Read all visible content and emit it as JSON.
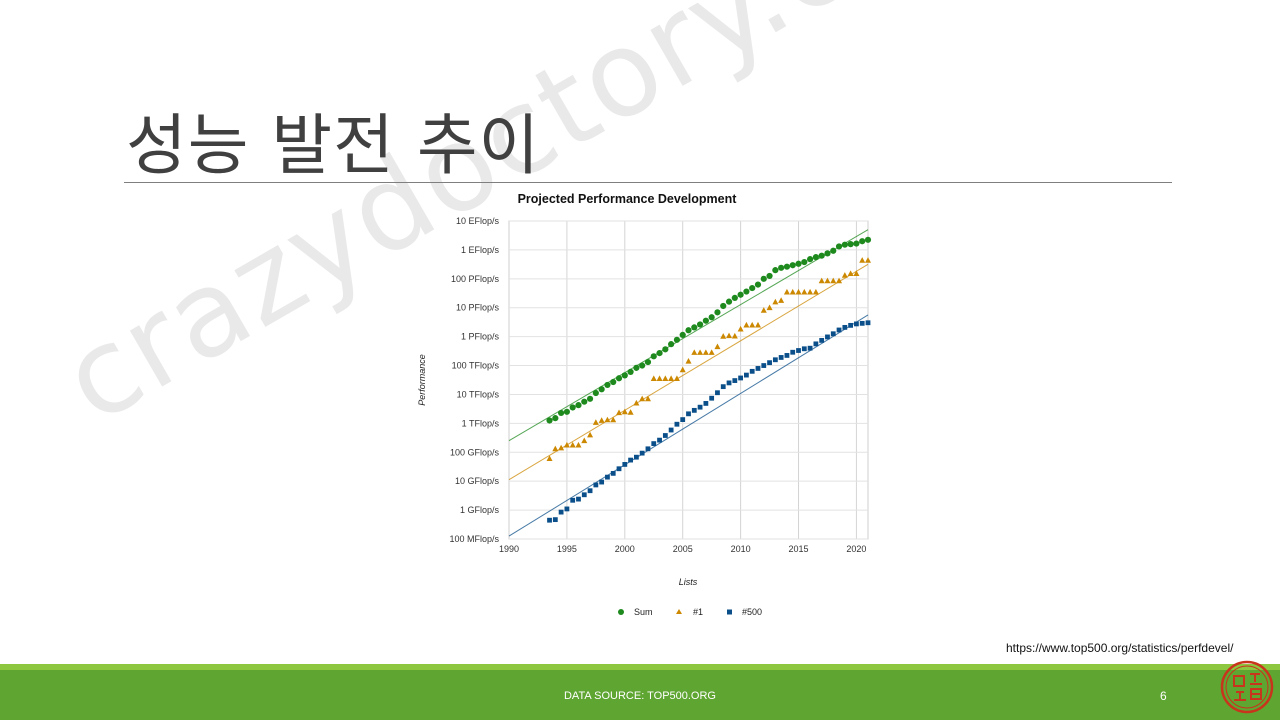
{
  "slide": {
    "title": "성능 발전 추이",
    "source_url": "https://www.top500.org/statistics/perfdevel/",
    "footer_text": "DATA SOURCE: TOP500.ORG",
    "page_number": "6",
    "watermark": "crazydoctory.com",
    "seal_text": "미꾸라지 특공대"
  },
  "colors": {
    "footer_bar": "#5fa532",
    "footer_thin": "#8dc63f",
    "sum": "#1e8a1e",
    "no1": "#cc8800",
    "no500": "#0b4f8a",
    "seal": "#c8341c"
  },
  "chart_data": {
    "type": "scatter",
    "title": "Projected Performance Development",
    "xlabel": "Lists",
    "ylabel": "Performance",
    "log_y": true,
    "grid": true,
    "legend_position": "bottom",
    "xlim": [
      1990,
      2021
    ],
    "ylim_log10": [
      8,
      19
    ],
    "x_ticks": [
      "1990",
      "1995",
      "2000",
      "2005",
      "2010",
      "2015",
      "2020"
    ],
    "y_ticks": [
      "100 MFlop/s",
      "1 GFlop/s",
      "10 GFlop/s",
      "100 GFlop/s",
      "1 TFlop/s",
      "10 TFlop/s",
      "100 TFlop/s",
      "1 PFlop/s",
      "10 PFlop/s",
      "100 PFlop/s",
      "1 EFlop/s",
      "10 EFlop/s"
    ],
    "series": [
      {
        "name": "Sum",
        "marker": "circle",
        "color": "#1e8a1e",
        "x": [
          1993.5,
          1994,
          1994.5,
          1995,
          1995.5,
          1996,
          1996.5,
          1997,
          1997.5,
          1998,
          1998.5,
          1999,
          1999.5,
          2000,
          2000.5,
          2001,
          2001.5,
          2002,
          2002.5,
          2003,
          2003.5,
          2004,
          2004.5,
          2005,
          2005.5,
          2006,
          2006.5,
          2007,
          2007.5,
          2008,
          2008.5,
          2009,
          2009.5,
          2010,
          2010.5,
          2011,
          2011.5,
          2012,
          2012.5,
          2013,
          2013.5,
          2014,
          2014.5,
          2015,
          2015.5,
          2016,
          2016.5,
          2017,
          2017.5,
          2018,
          2018.5,
          2019,
          2019.5,
          2020,
          2020.5,
          2021
        ],
        "log10_y": [
          12.1,
          12.18,
          12.36,
          12.4,
          12.55,
          12.63,
          12.75,
          12.85,
          13.05,
          13.18,
          13.33,
          13.43,
          13.56,
          13.66,
          13.78,
          13.92,
          14.0,
          14.12,
          14.32,
          14.43,
          14.56,
          14.74,
          14.89,
          15.06,
          15.22,
          15.32,
          15.42,
          15.55,
          15.67,
          15.84,
          16.06,
          16.21,
          16.34,
          16.45,
          16.56,
          16.68,
          16.8,
          17.0,
          17.1,
          17.3,
          17.38,
          17.42,
          17.47,
          17.52,
          17.58,
          17.68,
          17.75,
          17.8,
          17.88,
          17.97,
          18.12,
          18.18,
          18.2,
          18.22,
          18.3,
          18.35
        ]
      },
      {
        "name": "#1",
        "marker": "triangle",
        "color": "#cc8800",
        "x": [
          1993.5,
          1994,
          1994.5,
          1995,
          1995.5,
          1996,
          1996.5,
          1997,
          1997.5,
          1998,
          1998.5,
          1999,
          1999.5,
          2000,
          2000.5,
          2001,
          2001.5,
          2002,
          2002.5,
          2003,
          2003.5,
          2004,
          2004.5,
          2005,
          2005.5,
          2006,
          2006.5,
          2007,
          2007.5,
          2008,
          2008.5,
          2009,
          2009.5,
          2010,
          2010.5,
          2011,
          2011.5,
          2012,
          2012.5,
          2013,
          2013.5,
          2014,
          2014.5,
          2015,
          2015.5,
          2016,
          2016.5,
          2017,
          2017.5,
          2018,
          2018.5,
          2019,
          2019.5,
          2020,
          2020.5,
          2021
        ],
        "log10_y": [
          10.78,
          11.12,
          11.15,
          11.25,
          11.25,
          11.25,
          11.4,
          11.6,
          12.03,
          12.1,
          12.12,
          12.12,
          12.37,
          12.4,
          12.38,
          12.7,
          12.85,
          12.85,
          13.55,
          13.55,
          13.55,
          13.55,
          13.55,
          13.85,
          14.15,
          14.45,
          14.45,
          14.45,
          14.45,
          14.65,
          15.01,
          15.03,
          15.02,
          15.26,
          15.4,
          15.4,
          15.4,
          15.91,
          16.0,
          16.2,
          16.25,
          16.54,
          16.54,
          16.54,
          16.54,
          16.54,
          16.54,
          16.93,
          16.93,
          16.93,
          16.93,
          17.12,
          17.18,
          17.18,
          17.64,
          17.64
        ]
      },
      {
        "name": "#500",
        "marker": "square",
        "color": "#0b4f8a",
        "x": [
          1993.5,
          1994,
          1994.5,
          1995,
          1995.5,
          1996,
          1996.5,
          1997,
          1997.5,
          1998,
          1998.5,
          1999,
          1999.5,
          2000,
          2000.5,
          2001,
          2001.5,
          2002,
          2002.5,
          2003,
          2003.5,
          2004,
          2004.5,
          2005,
          2005.5,
          2006,
          2006.5,
          2007,
          2007.5,
          2008,
          2008.5,
          2009,
          2009.5,
          2010,
          2010.5,
          2011,
          2011.5,
          2012,
          2012.5,
          2013,
          2013.5,
          2014,
          2014.5,
          2015,
          2015.5,
          2016,
          2016.5,
          2017,
          2017.5,
          2018,
          2018.5,
          2019,
          2019.5,
          2020,
          2020.5,
          2021
        ],
        "log10_y": [
          8.65,
          8.67,
          8.93,
          9.04,
          9.34,
          9.38,
          9.53,
          9.67,
          9.87,
          9.97,
          10.14,
          10.27,
          10.43,
          10.58,
          10.73,
          10.83,
          10.97,
          11.12,
          11.3,
          11.42,
          11.58,
          11.77,
          11.97,
          12.13,
          12.33,
          12.45,
          12.56,
          12.69,
          12.87,
          13.06,
          13.27,
          13.4,
          13.48,
          13.57,
          13.67,
          13.8,
          13.9,
          14.0,
          14.1,
          14.2,
          14.28,
          14.35,
          14.46,
          14.52,
          14.58,
          14.6,
          14.75,
          14.87,
          14.99,
          15.1,
          15.23,
          15.32,
          15.39,
          15.44,
          15.46,
          15.48
        ]
      }
    ],
    "trend_lines": [
      {
        "name": "Sum trend",
        "color": "#1e8a1e",
        "x": [
          1990,
          2021
        ],
        "log10_y": [
          11.4,
          18.7
        ]
      },
      {
        "name": "#1 trend",
        "color": "#cc8800",
        "x": [
          1990,
          2021
        ],
        "log10_y": [
          10.05,
          17.5
        ]
      },
      {
        "name": "#500 trend",
        "color": "#0b4f8a",
        "x": [
          1990,
          2021
        ],
        "log10_y": [
          8.1,
          15.75
        ]
      }
    ]
  }
}
